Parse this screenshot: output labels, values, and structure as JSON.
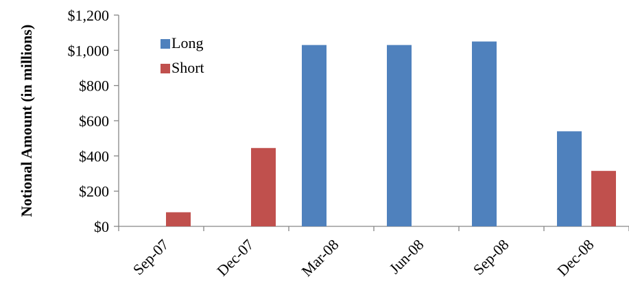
{
  "chart_data": {
    "type": "bar",
    "title": "",
    "xlabel": "",
    "ylabel": "Notional Amount (in millions)",
    "categories": [
      "Sep-07",
      "Dec-07",
      "Mar-08",
      "Jun-08",
      "Sep-08",
      "Dec-08"
    ],
    "series": [
      {
        "name": "Long",
        "color": "#4f81bd",
        "values": [
          0,
          0,
          1030,
          1030,
          1050,
          540
        ]
      },
      {
        "name": "Short",
        "color": "#c0504d",
        "values": [
          80,
          445,
          0,
          0,
          0,
          315
        ]
      }
    ],
    "ylim": [
      0,
      1200
    ],
    "yticks": [
      0,
      200,
      400,
      600,
      800,
      1000,
      1200
    ],
    "ytick_labels": [
      "$0",
      "$200",
      "$400",
      "$600",
      "$800",
      "$1,000",
      "$1,200"
    ],
    "grid": false,
    "legend_position": "top-left"
  }
}
